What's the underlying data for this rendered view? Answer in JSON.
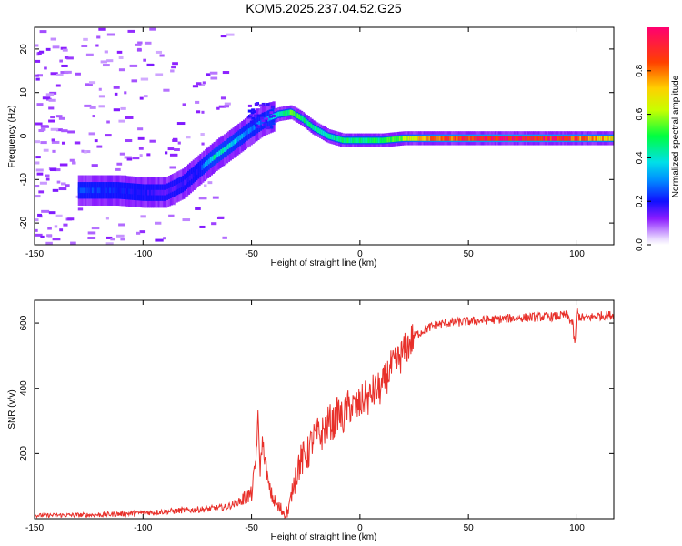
{
  "title": "KOM5.2025.237.04.52.G25",
  "colors": {
    "snr_line": "#e8302a",
    "axis": "#000000",
    "background": "#ffffff"
  },
  "chart_data": [
    {
      "type": "heatmap",
      "name": "spectrogram",
      "xlabel": "Height of straight line (km)",
      "ylabel": "Frequency (Hz)",
      "xlim": [
        -150,
        117
      ],
      "ylim": [
        -25,
        25
      ],
      "xticks": [
        -150,
        -100,
        -50,
        0,
        50,
        100
      ],
      "xtick_labels": [
        "-150",
        "-100",
        "-50",
        "0",
        "50",
        "100"
      ],
      "yticks": [
        -20,
        -10,
        0,
        10,
        20
      ],
      "ytick_labels": [
        "-20",
        "-10",
        "0",
        "10",
        "20"
      ],
      "ridge": [
        {
          "x": -125,
          "f": -12.5,
          "a": 0.25
        },
        {
          "x": -112,
          "f": -12.5,
          "a": 0.22
        },
        {
          "x": -100,
          "f": -13,
          "a": 0.2
        },
        {
          "x": -90,
          "f": -13,
          "a": 0.15
        },
        {
          "x": -82,
          "f": -11,
          "a": 0.18
        },
        {
          "x": -75,
          "f": -8,
          "a": 0.2
        },
        {
          "x": -68,
          "f": -5,
          "a": 0.45
        },
        {
          "x": -60,
          "f": -2,
          "a": 0.4
        },
        {
          "x": -52,
          "f": 1,
          "a": 0.3
        },
        {
          "x": -45,
          "f": 3.5,
          "a": 0.3
        },
        {
          "x": -38,
          "f": 5,
          "a": 0.45
        },
        {
          "x": -32,
          "f": 5.5,
          "a": 0.55
        },
        {
          "x": -27,
          "f": 4,
          "a": 0.5
        },
        {
          "x": -22,
          "f": 2,
          "a": 0.45
        },
        {
          "x": -15,
          "f": 0,
          "a": 0.45
        },
        {
          "x": -8,
          "f": -1,
          "a": 0.5
        },
        {
          "x": 0,
          "f": -1,
          "a": 0.5
        },
        {
          "x": 10,
          "f": -1,
          "a": 0.5
        },
        {
          "x": 20,
          "f": -0.5,
          "a": 0.62
        },
        {
          "x": 30,
          "f": -0.5,
          "a": 0.8
        },
        {
          "x": 50,
          "f": -0.5,
          "a": 0.95
        },
        {
          "x": 70,
          "f": -0.5,
          "a": 1.0
        },
        {
          "x": 90,
          "f": -0.5,
          "a": 0.95
        },
        {
          "x": 110,
          "f": -0.5,
          "a": 0.8
        },
        {
          "x": 117,
          "f": -0.5,
          "a": 0.7
        }
      ]
    },
    {
      "type": "colorbar",
      "name": "colorbar",
      "label": "Normalized spectral amplitude",
      "range": [
        0,
        1
      ],
      "ticks": [
        0,
        0.2,
        0.4,
        0.6,
        0.8
      ],
      "tick_labels": [
        "0.0",
        "0.2",
        "0.4",
        "0.6",
        "0.8"
      ]
    },
    {
      "type": "line",
      "name": "snr",
      "xlabel": "Height of straight line (km)",
      "ylabel": "SNR (v/v)",
      "xlim": [
        -150,
        117
      ],
      "ylim": [
        0,
        670
      ],
      "xticks": [
        -150,
        -100,
        -50,
        0,
        50,
        100
      ],
      "xtick_labels": [
        "-150",
        "-100",
        "-50",
        "0",
        "50",
        "100"
      ],
      "yticks": [
        200,
        400,
        600
      ],
      "ytick_labels": [
        "200",
        "400",
        "600"
      ],
      "series": [
        {
          "name": "SNR",
          "x": [
            -150,
            -120,
            -100,
            -90,
            -80,
            -70,
            -62,
            -58,
            -54,
            -50,
            -48,
            -47,
            -46,
            -45,
            -44,
            -42,
            -40,
            -38,
            -36,
            -33,
            -30,
            -28,
            -26,
            -24,
            -22,
            -20,
            -18,
            -16,
            -14,
            -12,
            -10,
            -8,
            -6,
            -4,
            -2,
            0,
            2,
            4,
            6,
            8,
            10,
            12,
            14,
            16,
            18,
            20,
            22,
            25,
            30,
            35,
            40,
            50,
            60,
            70,
            80,
            90,
            95,
            98,
            99,
            100,
            101,
            103,
            110,
            117
          ],
          "y": [
            10,
            12,
            18,
            22,
            26,
            30,
            35,
            45,
            60,
            75,
            180,
            310,
            150,
            240,
            190,
            95,
            60,
            35,
            25,
            20,
            130,
            170,
            185,
            200,
            240,
            260,
            255,
            280,
            300,
            290,
            330,
            300,
            340,
            345,
            340,
            350,
            370,
            365,
            390,
            395,
            400,
            430,
            460,
            470,
            490,
            510,
            530,
            560,
            580,
            595,
            600,
            605,
            610,
            615,
            618,
            620,
            625,
            600,
            530,
            640,
            620,
            615,
            622,
            625
          ]
        }
      ]
    }
  ]
}
